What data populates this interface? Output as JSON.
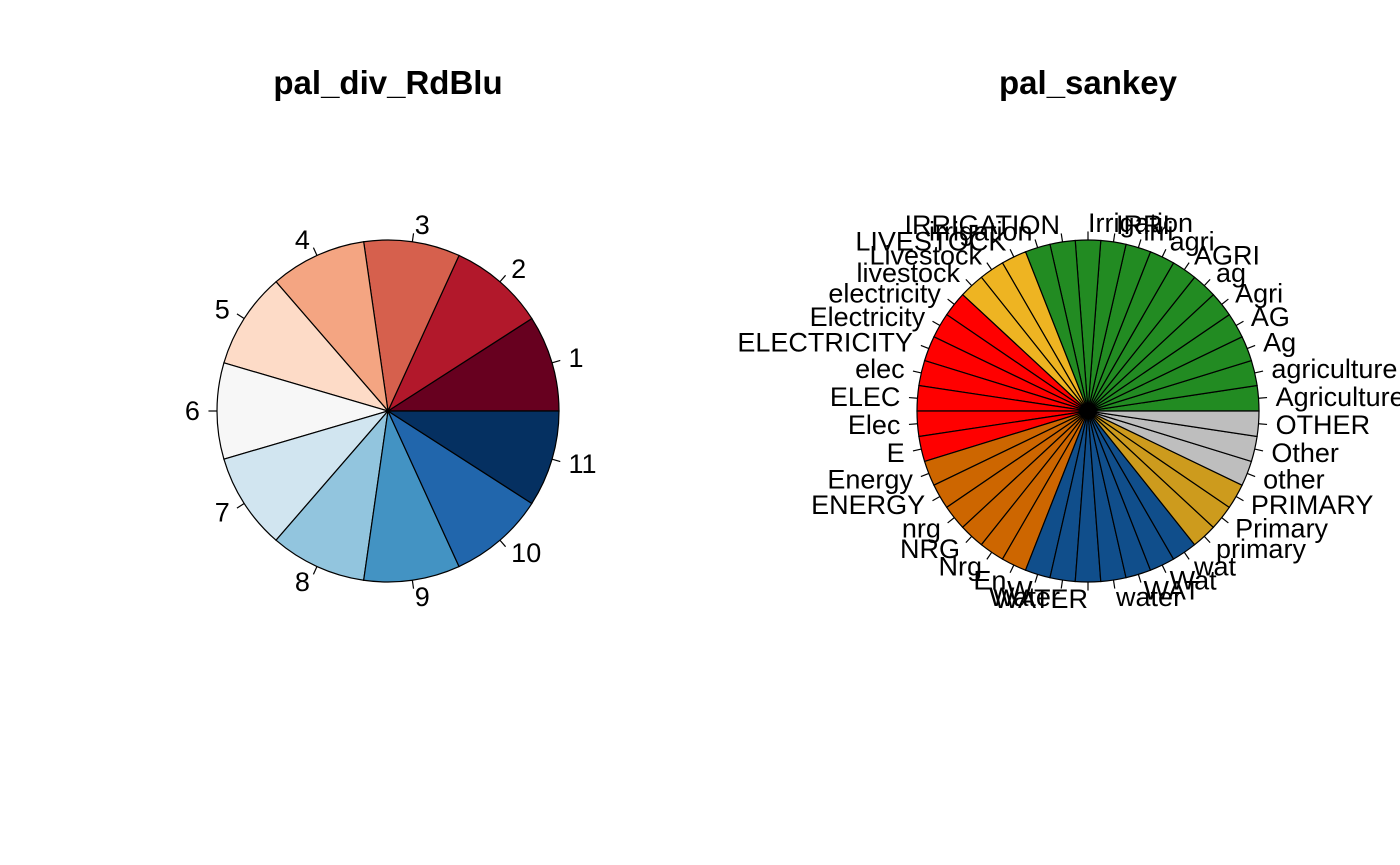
{
  "chart_data": [
    {
      "type": "pie",
      "title": "pal_div_RdBlu",
      "start_angle_deg": 0,
      "direction": "counterclockwise",
      "slices": [
        {
          "label": "1",
          "value": 1,
          "color": "#67001F"
        },
        {
          "label": "2",
          "value": 1,
          "color": "#B2182B"
        },
        {
          "label": "3",
          "value": 1,
          "color": "#D6604D"
        },
        {
          "label": "4",
          "value": 1,
          "color": "#F4A582"
        },
        {
          "label": "5",
          "value": 1,
          "color": "#FDDBC7"
        },
        {
          "label": "6",
          "value": 1,
          "color": "#F7F7F7"
        },
        {
          "label": "7",
          "value": 1,
          "color": "#D1E5F0"
        },
        {
          "label": "8",
          "value": 1,
          "color": "#92C5DE"
        },
        {
          "label": "9",
          "value": 1,
          "color": "#4393C3"
        },
        {
          "label": "10",
          "value": 1,
          "color": "#2166AC"
        },
        {
          "label": "11",
          "value": 1,
          "color": "#053061"
        }
      ]
    },
    {
      "type": "pie",
      "title": "pal_sankey",
      "start_angle_deg": 0,
      "direction": "counterclockwise",
      "slices": [
        {
          "label": "Agriculture",
          "value": 1,
          "color": "#228B22"
        },
        {
          "label": "agriculture",
          "value": 1,
          "color": "#228B22"
        },
        {
          "label": "Ag",
          "value": 1,
          "color": "#228B22"
        },
        {
          "label": "AG",
          "value": 1,
          "color": "#228B22"
        },
        {
          "label": "Agri",
          "value": 1,
          "color": "#228B22"
        },
        {
          "label": "ag",
          "value": 1,
          "color": "#228B22"
        },
        {
          "label": "AGRI",
          "value": 1,
          "color": "#228B22"
        },
        {
          "label": "agri",
          "value": 1,
          "color": "#228B22"
        },
        {
          "label": "irri",
          "value": 1,
          "color": "#228B22"
        },
        {
          "label": "IRRI",
          "value": 1,
          "color": "#228B22"
        },
        {
          "label": "Irrigation",
          "value": 1,
          "color": "#228B22"
        },
        {
          "label": "IRRIGATION",
          "value": 1,
          "color": "#228B22"
        },
        {
          "label": "irrigation",
          "value": 1,
          "color": "#228B22"
        },
        {
          "label": "LIVESTOCK",
          "value": 1,
          "color": "#EEB422"
        },
        {
          "label": "Livestock",
          "value": 1,
          "color": "#EEB422"
        },
        {
          "label": "livestock",
          "value": 1,
          "color": "#EEB422"
        },
        {
          "label": "electricity",
          "value": 1,
          "color": "#FF0000"
        },
        {
          "label": "Electricity",
          "value": 1,
          "color": "#FF0000"
        },
        {
          "label": "ELECTRICITY",
          "value": 1,
          "color": "#FF0000"
        },
        {
          "label": "elec",
          "value": 1,
          "color": "#FF0000"
        },
        {
          "label": "ELEC",
          "value": 1,
          "color": "#FF0000"
        },
        {
          "label": "Elec",
          "value": 1,
          "color": "#FF0000"
        },
        {
          "label": "E",
          "value": 1,
          "color": "#FF0000"
        },
        {
          "label": "Energy",
          "value": 1,
          "color": "#CD6600"
        },
        {
          "label": "ENERGY",
          "value": 1,
          "color": "#CD6600"
        },
        {
          "label": "nrg",
          "value": 1,
          "color": "#CD6600"
        },
        {
          "label": "NRG",
          "value": 1,
          "color": "#CD6600"
        },
        {
          "label": "Nrg",
          "value": 1,
          "color": "#CD6600"
        },
        {
          "label": "En",
          "value": 1,
          "color": "#CD6600"
        },
        {
          "label": "W",
          "value": 1,
          "color": "#104E8B"
        },
        {
          "label": "Water",
          "value": 1,
          "color": "#104E8B"
        },
        {
          "label": "WATER",
          "value": 1,
          "color": "#104E8B"
        },
        {
          "label": "water",
          "value": 1,
          "color": "#104E8B"
        },
        {
          "label": "WAT",
          "value": 1,
          "color": "#104E8B"
        },
        {
          "label": "Wat",
          "value": 1,
          "color": "#104E8B"
        },
        {
          "label": "wat",
          "value": 1,
          "color": "#104E8B"
        },
        {
          "label": "primary",
          "value": 1,
          "color": "#CD9B1D"
        },
        {
          "label": "Primary",
          "value": 1,
          "color": "#CD9B1D"
        },
        {
          "label": "PRIMARY",
          "value": 1,
          "color": "#CD9B1D"
        },
        {
          "label": "other",
          "value": 1,
          "color": "#BEBEBE"
        },
        {
          "label": "Other",
          "value": 1,
          "color": "#BEBEBE"
        },
        {
          "label": "OTHER",
          "value": 1,
          "color": "#BEBEBE"
        }
      ]
    }
  ]
}
